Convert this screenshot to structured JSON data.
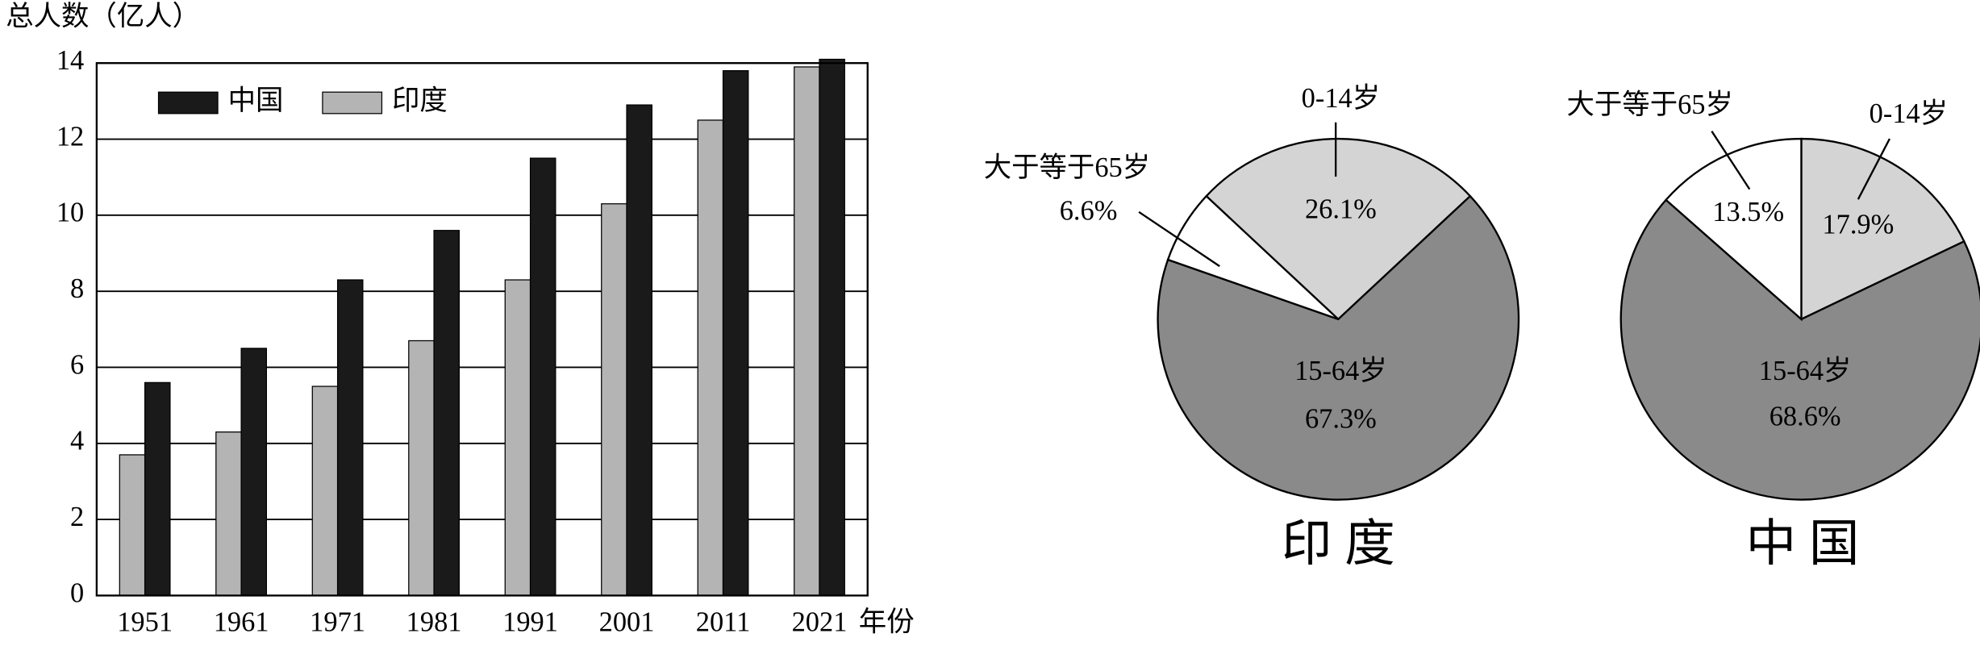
{
  "chart_data": [
    {
      "type": "bar",
      "y_label": "总人数（亿人）",
      "x_label": "年份",
      "categories": [
        "1951",
        "1961",
        "1971",
        "1981",
        "1991",
        "2001",
        "2011",
        "2021"
      ],
      "series": [
        {
          "name": "印度",
          "color": "#b4b4b4",
          "values": [
            3.7,
            4.3,
            5.5,
            6.7,
            8.3,
            10.3,
            12.5,
            13.9
          ]
        },
        {
          "name": "中国",
          "color": "#1a1a1a",
          "values": [
            5.6,
            6.5,
            8.3,
            9.6,
            11.5,
            12.9,
            13.8,
            14.1
          ]
        }
      ],
      "ylim": [
        0,
        14
      ],
      "yticks": [
        0,
        2,
        4,
        6,
        8,
        10,
        12,
        14
      ],
      "grid": true
    },
    {
      "type": "pie",
      "title": "印 度",
      "categories": [
        "0-14岁",
        "15-64岁",
        "大于等于65岁"
      ],
      "values": [
        26.1,
        67.3,
        6.6
      ],
      "value_labels": [
        "26.1%",
        "67.3%",
        "6.6%"
      ],
      "colors": [
        "#d4d4d4",
        "#8a8a8a",
        "#ffffff"
      ]
    },
    {
      "type": "pie",
      "title": "中 国",
      "categories": [
        "0-14岁",
        "15-64岁",
        "大于等于65岁"
      ],
      "values": [
        17.9,
        68.6,
        13.5
      ],
      "value_labels": [
        "17.9%",
        "68.6%",
        "13.5%"
      ],
      "colors": [
        "#d4d4d4",
        "#8a8a8a",
        "#ffffff"
      ]
    }
  ]
}
